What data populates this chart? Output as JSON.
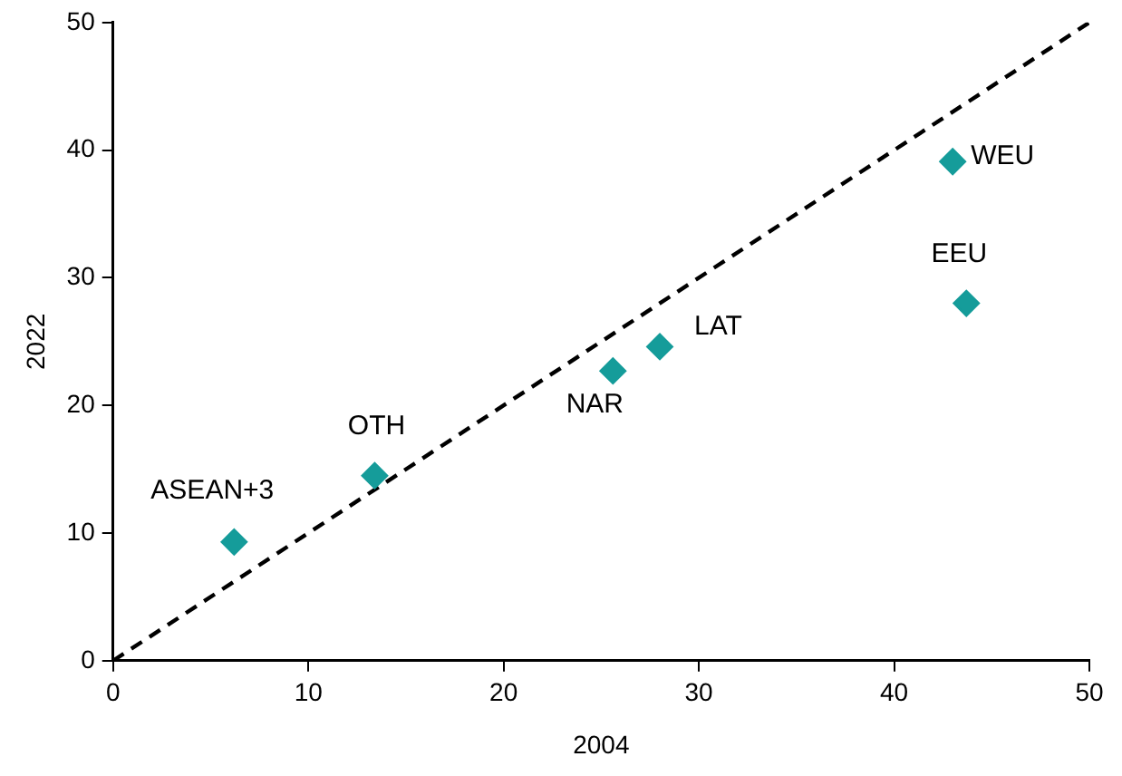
{
  "chart_data": {
    "type": "scatter",
    "xlabel": "2004",
    "ylabel": "2022",
    "xlim": [
      0,
      50
    ],
    "xticks": [
      0,
      10,
      20,
      30,
      40,
      50
    ],
    "ylim": [
      0,
      50
    ],
    "yticks": [
      0,
      10,
      20,
      30,
      40,
      50
    ],
    "grid": false,
    "legend": false,
    "marker": "diamond",
    "series": [
      {
        "type": "scatter",
        "color": "#159c9a",
        "x": [
          6.2,
          13.4,
          25.6,
          28.0,
          43.0,
          43.7
        ],
        "values": [
          9.3,
          14.5,
          22.7,
          24.6,
          39.1,
          28.0
        ]
      },
      {
        "type": "line",
        "color": "#000000",
        "line_style": "dashed",
        "marker": "none",
        "x": [
          0,
          50
        ],
        "values": [
          0,
          50
        ]
      }
    ],
    "annotations": [
      {
        "text": "ASEAN+3",
        "x": 6.2,
        "y": 9.3
      },
      {
        "text": "OTH",
        "x": 13.4,
        "y": 14.5
      },
      {
        "text": "NAR",
        "x": 25.6,
        "y": 22.7
      },
      {
        "text": "LAT",
        "x": 28.0,
        "y": 24.6
      },
      {
        "text": "WEU",
        "x": 43.0,
        "y": 39.1
      },
      {
        "text": "EEU",
        "x": 43.7,
        "y": 28.0
      }
    ]
  }
}
